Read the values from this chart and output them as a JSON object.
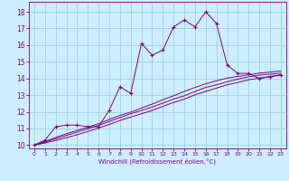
{
  "title": "",
  "xlabel": "Windchill (Refroidissement éolien,°C)",
  "ylabel": "",
  "bg_color": "#cceeff",
  "line_color": "#800080",
  "grid_color": "#99cccc",
  "xlim": [
    -0.5,
    23.5
  ],
  "ylim": [
    9.8,
    18.6
  ],
  "yticks": [
    10,
    11,
    12,
    13,
    14,
    15,
    16,
    17,
    18
  ],
  "xticks": [
    0,
    1,
    2,
    3,
    4,
    5,
    6,
    7,
    8,
    9,
    10,
    11,
    12,
    13,
    14,
    15,
    16,
    17,
    18,
    19,
    20,
    21,
    22,
    23
  ],
  "line1_x": [
    0,
    1,
    2,
    3,
    4,
    5,
    6,
    7,
    8,
    9,
    10,
    11,
    12,
    13,
    14,
    15,
    16,
    17,
    18,
    19,
    20,
    21,
    22,
    23
  ],
  "line1_y": [
    10.0,
    10.3,
    11.1,
    11.2,
    11.2,
    11.1,
    11.1,
    12.1,
    13.5,
    13.1,
    16.1,
    15.4,
    15.7,
    17.1,
    17.5,
    17.1,
    18.0,
    17.3,
    14.8,
    14.3,
    14.3,
    14.0,
    14.1,
    14.2
  ],
  "line2_x": [
    0,
    1,
    2,
    3,
    4,
    5,
    6,
    7,
    8,
    9,
    10,
    11,
    12,
    13,
    14,
    15,
    16,
    17,
    18,
    19,
    20,
    21,
    22,
    23
  ],
  "line2_y": [
    10.0,
    10.18,
    10.38,
    10.58,
    10.78,
    10.98,
    11.18,
    11.42,
    11.65,
    11.88,
    12.08,
    12.28,
    12.52,
    12.76,
    12.96,
    13.22,
    13.46,
    13.62,
    13.8,
    13.96,
    14.1,
    14.2,
    14.26,
    14.32
  ],
  "line3_x": [
    0,
    1,
    2,
    3,
    4,
    5,
    6,
    7,
    8,
    9,
    10,
    11,
    12,
    13,
    14,
    15,
    16,
    17,
    18,
    19,
    20,
    21,
    22,
    23
  ],
  "line3_y": [
    10.0,
    10.22,
    10.46,
    10.68,
    10.88,
    11.08,
    11.28,
    11.54,
    11.78,
    11.98,
    12.22,
    12.46,
    12.72,
    12.96,
    13.22,
    13.46,
    13.68,
    13.86,
    14.02,
    14.12,
    14.22,
    14.32,
    14.38,
    14.45
  ],
  "line4_x": [
    0,
    1,
    2,
    3,
    4,
    5,
    6,
    7,
    8,
    9,
    10,
    11,
    12,
    13,
    14,
    15,
    16,
    17,
    18,
    19,
    20,
    21,
    22,
    23
  ],
  "line4_y": [
    10.0,
    10.12,
    10.28,
    10.44,
    10.62,
    10.82,
    11.02,
    11.24,
    11.48,
    11.68,
    11.88,
    12.08,
    12.32,
    12.56,
    12.76,
    13.02,
    13.22,
    13.42,
    13.62,
    13.76,
    13.92,
    14.02,
    14.12,
    14.22
  ]
}
